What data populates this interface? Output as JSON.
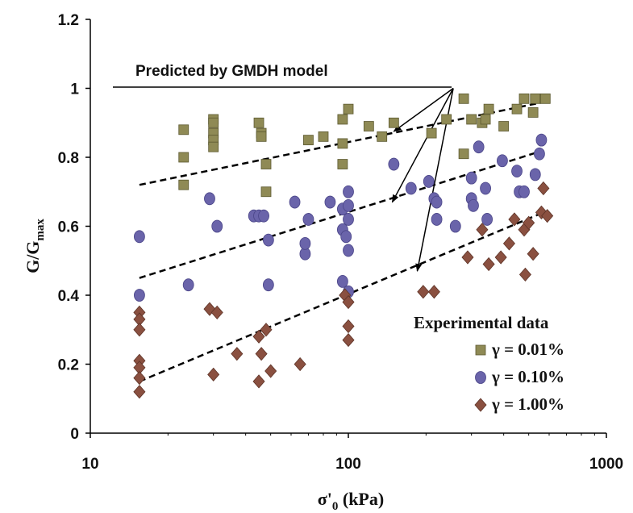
{
  "colors": {
    "square": "#8f8a55",
    "circle": "#6a64aa",
    "diamond": "#8a5040",
    "axis": "#000000"
  },
  "chart_data": {
    "type": "scatter",
    "xscale": "log",
    "xlim": [
      10,
      1000
    ],
    "ylim": [
      0,
      1.2
    ],
    "xticks": [
      "10",
      "100",
      "1000"
    ],
    "yticks": [
      "0",
      "0.2",
      "0.4",
      "0.6",
      "0.8",
      "1",
      "1.2"
    ],
    "xlabel_main": "σ'",
    "xlabel_sub": "0",
    "xlabel_unit": " (kPa)",
    "ylabel_main": "G/G",
    "ylabel_sub": "max",
    "grid": false,
    "annotation": "Predicted by GMDH model",
    "legend": {
      "title": "Experimental data",
      "placement": "bottom-right",
      "entries": [
        "γ = 0.01%",
        "γ = 0.10%",
        "γ = 1.00%"
      ]
    },
    "series": [
      {
        "name": "γ = 0.01%",
        "marker": "square",
        "points": [
          [
            23,
            0.88
          ],
          [
            23,
            0.8
          ],
          [
            23,
            0.72
          ],
          [
            30,
            0.91
          ],
          [
            30,
            0.9
          ],
          [
            30,
            0.87
          ],
          [
            30,
            0.85
          ],
          [
            30,
            0.83
          ],
          [
            45,
            0.9
          ],
          [
            46,
            0.87
          ],
          [
            46,
            0.86
          ],
          [
            48,
            0.78
          ],
          [
            48,
            0.7
          ],
          [
            70,
            0.85
          ],
          [
            80,
            0.86
          ],
          [
            95,
            0.91
          ],
          [
            95,
            0.84
          ],
          [
            95,
            0.78
          ],
          [
            100,
            0.94
          ],
          [
            120,
            0.89
          ],
          [
            135,
            0.86
          ],
          [
            150,
            0.9
          ],
          [
            210,
            0.87
          ],
          [
            240,
            0.91
          ],
          [
            280,
            0.97
          ],
          [
            280,
            0.81
          ],
          [
            300,
            0.91
          ],
          [
            330,
            0.9
          ],
          [
            340,
            0.91
          ],
          [
            350,
            0.94
          ],
          [
            400,
            0.89
          ],
          [
            450,
            0.94
          ],
          [
            480,
            0.97
          ],
          [
            520,
            0.93
          ],
          [
            530,
            0.97
          ],
          [
            580,
            0.97
          ]
        ]
      },
      {
        "name": "γ = 0.10%",
        "marker": "circle",
        "points": [
          [
            15.5,
            0.57
          ],
          [
            15.5,
            0.4
          ],
          [
            24,
            0.43
          ],
          [
            29,
            0.68
          ],
          [
            31,
            0.6
          ],
          [
            43,
            0.63
          ],
          [
            45,
            0.63
          ],
          [
            47,
            0.63
          ],
          [
            49,
            0.56
          ],
          [
            49,
            0.43
          ],
          [
            62,
            0.67
          ],
          [
            68,
            0.52
          ],
          [
            68,
            0.55
          ],
          [
            70,
            0.62
          ],
          [
            85,
            0.67
          ],
          [
            95,
            0.65
          ],
          [
            95,
            0.59
          ],
          [
            95,
            0.44
          ],
          [
            98,
            0.57
          ],
          [
            100,
            0.7
          ],
          [
            100,
            0.66
          ],
          [
            100,
            0.62
          ],
          [
            100,
            0.53
          ],
          [
            100,
            0.41
          ],
          [
            150,
            0.78
          ],
          [
            175,
            0.71
          ],
          [
            205,
            0.73
          ],
          [
            215,
            0.68
          ],
          [
            220,
            0.67
          ],
          [
            220,
            0.62
          ],
          [
            260,
            0.6
          ],
          [
            300,
            0.74
          ],
          [
            300,
            0.68
          ],
          [
            305,
            0.66
          ],
          [
            320,
            0.83
          ],
          [
            340,
            0.71
          ],
          [
            345,
            0.62
          ],
          [
            395,
            0.79
          ],
          [
            450,
            0.76
          ],
          [
            460,
            0.7
          ],
          [
            480,
            0.7
          ],
          [
            530,
            0.75
          ],
          [
            550,
            0.81
          ],
          [
            560,
            0.85
          ]
        ]
      },
      {
        "name": "γ = 1.00%",
        "marker": "diamond",
        "points": [
          [
            15.5,
            0.35
          ],
          [
            15.5,
            0.33
          ],
          [
            15.5,
            0.3
          ],
          [
            15.5,
            0.21
          ],
          [
            15.5,
            0.19
          ],
          [
            15.5,
            0.16
          ],
          [
            15.5,
            0.12
          ],
          [
            29,
            0.36
          ],
          [
            30,
            0.17
          ],
          [
            31,
            0.35
          ],
          [
            37,
            0.23
          ],
          [
            45,
            0.28
          ],
          [
            45,
            0.15
          ],
          [
            46,
            0.23
          ],
          [
            48,
            0.3
          ],
          [
            50,
            0.18
          ],
          [
            65,
            0.2
          ],
          [
            97,
            0.4
          ],
          [
            100,
            0.38
          ],
          [
            100,
            0.31
          ],
          [
            100,
            0.27
          ],
          [
            195,
            0.41
          ],
          [
            215,
            0.41
          ],
          [
            290,
            0.51
          ],
          [
            330,
            0.59
          ],
          [
            350,
            0.49
          ],
          [
            390,
            0.51
          ],
          [
            420,
            0.55
          ],
          [
            440,
            0.62
          ],
          [
            480,
            0.59
          ],
          [
            485,
            0.46
          ],
          [
            500,
            0.61
          ],
          [
            520,
            0.52
          ],
          [
            560,
            0.64
          ],
          [
            570,
            0.71
          ],
          [
            590,
            0.63
          ]
        ]
      }
    ],
    "model_lines": [
      {
        "series": "γ = 0.01%",
        "x": [
          15.5,
          570
        ],
        "y": [
          0.72,
          0.96
        ]
      },
      {
        "series": "γ = 0.10%",
        "x": [
          15.5,
          570
        ],
        "y": [
          0.45,
          0.82
        ]
      },
      {
        "series": "γ = 1.00%",
        "x": [
          15.5,
          570
        ],
        "y": [
          0.15,
          0.64
        ]
      }
    ],
    "annotation_arrows": [
      {
        "from": [
          255,
          1.0
        ],
        "to": [
          150,
          0.875
        ]
      },
      {
        "from": [
          255,
          1.0
        ],
        "to": [
          148,
          0.67
        ]
      },
      {
        "from": [
          255,
          1.0
        ],
        "to": [
          185,
          0.47
        ]
      }
    ]
  }
}
